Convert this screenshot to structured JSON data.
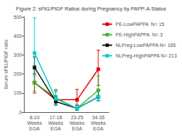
{
  "chart_data": {
    "type": "line",
    "title": "Figure 2: sFlt1/PlGF Ratios during Pregnancy by PAPP-A Status",
    "ylabel": "Serum sFlt1/PlGF ratio",
    "categories": [
      "8-10\nWeeks\nEGA",
      "17-18\nWeeks\nEGA",
      "23-25\nWeeks\nEGA",
      "34-35\nWeeks\nEGA"
    ],
    "ylim": [
      0,
      500
    ],
    "yticks": [
      0,
      100,
      200,
      300,
      400,
      500
    ],
    "grid": false,
    "legend": "right",
    "series": [
      {
        "name": "PE-LowPAPPA  N= 15",
        "color": "#dd0000",
        "marker": "square",
        "values": [
          155,
          65,
          65,
          225
        ],
        "yerr_low": [
          55,
          25,
          30,
          85
        ],
        "yerr_high": [
          75,
          45,
          55,
          100
        ]
      },
      {
        "name": "PE-HighPAPPA  N= 3",
        "color": "#33bb33",
        "marker": "square",
        "values": [
          155,
          75,
          20,
          115
        ],
        "yerr_low": [
          45,
          35,
          10,
          55
        ],
        "yerr_high": [
          70,
          45,
          18,
          75
        ]
      },
      {
        "name": "NLPreg-LowPAPPA N= 185",
        "color": "#111111",
        "marker": "square",
        "values": [
          235,
          55,
          20,
          80
        ],
        "yerr_low": [
          35,
          20,
          10,
          20
        ],
        "yerr_high": [
          55,
          30,
          18,
          35
        ]
      },
      {
        "name": "NLPreg-HighPAPPA N= 213",
        "color": "#00cccc",
        "marker": "square",
        "values": [
          310,
          70,
          20,
          80
        ],
        "yerr_low": [
          120,
          35,
          10,
          20
        ],
        "yerr_high": [
          185,
          45,
          18,
          35
        ]
      }
    ]
  }
}
